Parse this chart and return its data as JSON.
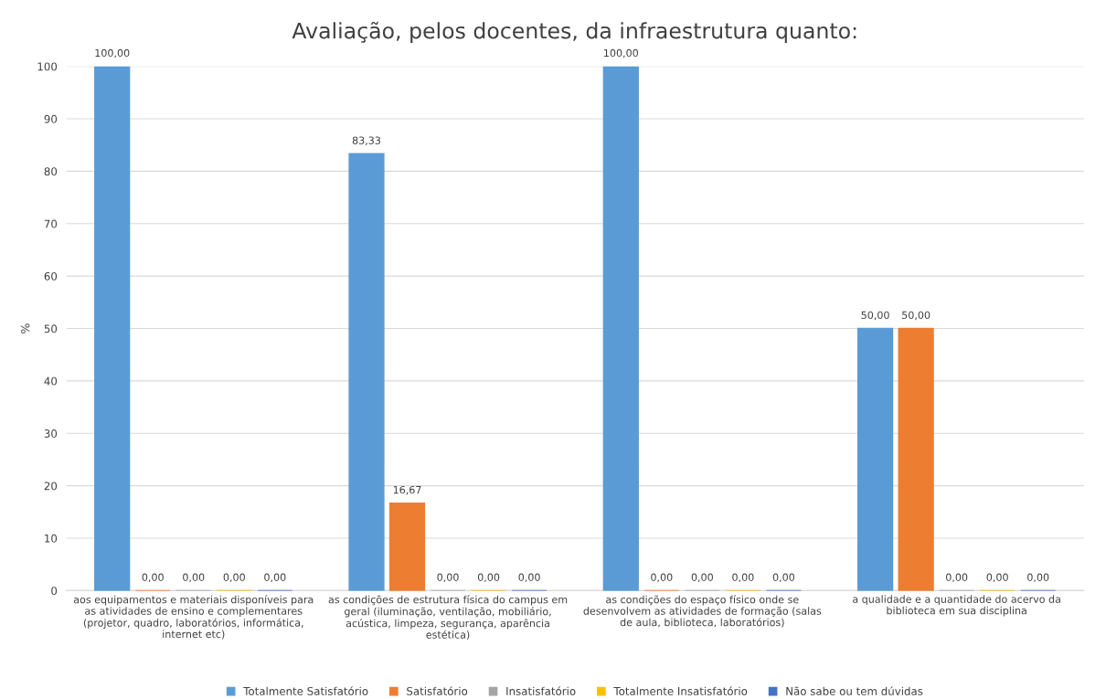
{
  "chart_data": {
    "type": "bar",
    "title": "Avaliação, pelos docentes, da infraestrutura quanto:",
    "ylabel": "%",
    "categories": [
      "aos equipamentos e materiais disponíveis para\nas atividades de ensino e complementares\n(projetor, quadro, laboratórios, informática,\ninternet etc)",
      "as condições de estrutura física do campus em\ngeral (iluminação, ventilação, mobiliário,\nacústica, limpeza, segurança, aparência\nestética)",
      "as condições do espaço físico onde se\ndesenvolvem as atividades de formação (salas\nde aula, biblioteca, laboratórios)",
      "a qualidade e a quantidade do acervo da\nbiblioteca em sua disciplina"
    ],
    "series": [
      {
        "name": "Totalmente Satisfatório",
        "color": "#5b9bd5",
        "values": [
          100,
          83.33,
          100,
          50
        ],
        "value_labels": [
          "100,00",
          "83,33",
          "100,00",
          "50,00"
        ]
      },
      {
        "name": "Satisfatório",
        "color": "#ed7d31",
        "values": [
          0,
          16.67,
          0,
          50
        ],
        "value_labels": [
          "0,00",
          "16,67",
          "0,00",
          "50,00"
        ]
      },
      {
        "name": "Insatisfatório",
        "color": "#a5a5a5",
        "values": [
          0,
          0,
          0,
          0
        ],
        "value_labels": [
          "0,00",
          "0,00",
          "0,00",
          "0,00"
        ]
      },
      {
        "name": "Totalmente Insatisfatório",
        "color": "#ffc000",
        "values": [
          0,
          0,
          0,
          0
        ],
        "value_labels": [
          "0,00",
          "0,00",
          "0,00",
          "0,00"
        ]
      },
      {
        "name": "Não sabe ou tem dúvidas",
        "color": "#4472c4",
        "values": [
          0,
          0,
          0,
          0
        ],
        "value_labels": [
          "0,00",
          "0,00",
          "0,00",
          "0,00"
        ]
      }
    ],
    "ylim": [
      0,
      100
    ],
    "yticks": [
      0,
      10,
      20,
      30,
      40,
      50,
      60,
      70,
      80,
      90,
      100
    ],
    "grid": "y",
    "legend": "bottom"
  }
}
